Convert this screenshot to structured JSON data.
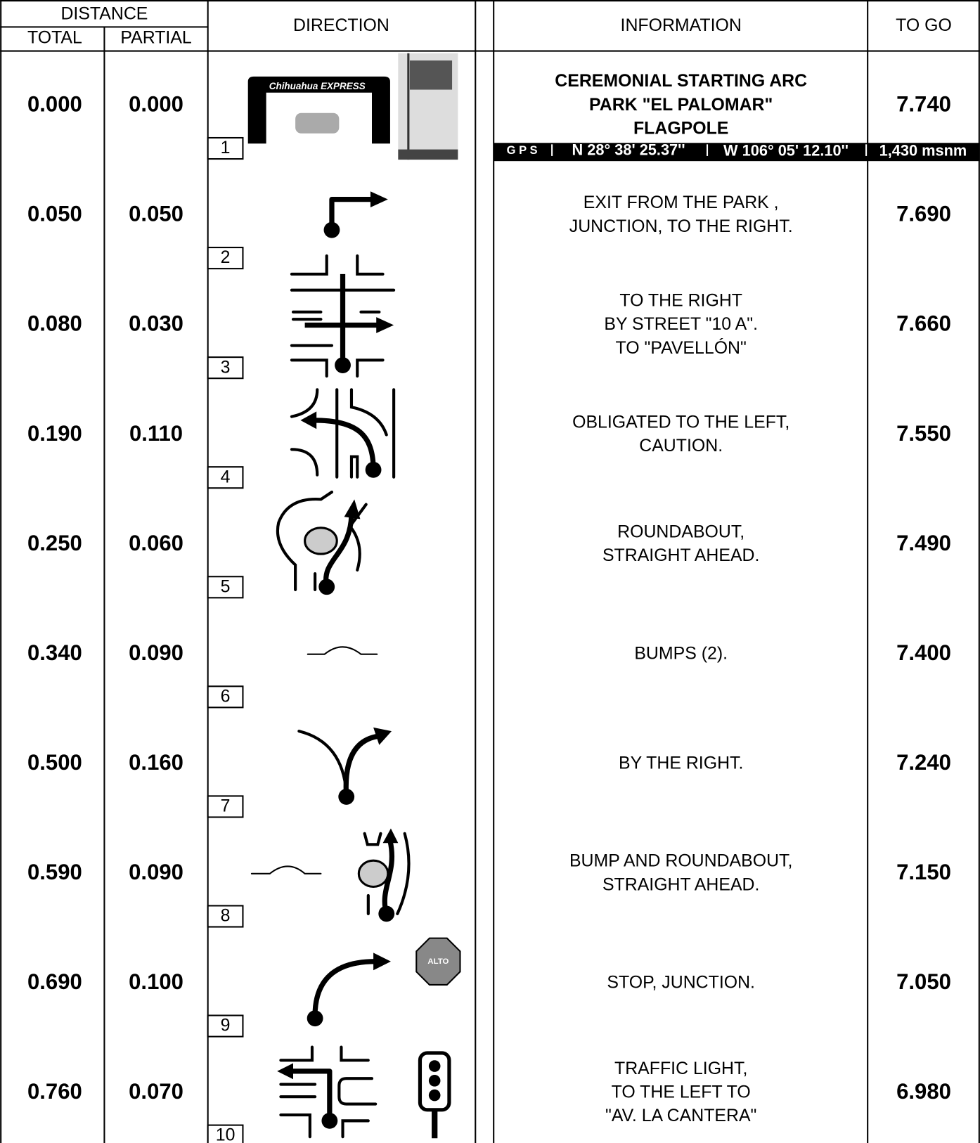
{
  "header": {
    "distance": "DISTANCE",
    "total": "TOTAL",
    "partial": "PARTIAL",
    "direction": "DIRECTION",
    "information": "INFORMATION",
    "to_go": "TO GO"
  },
  "rows": [
    {
      "number": 1,
      "total": "0.000",
      "partial": "0.000",
      "info": [
        "CEREMONIAL STARTING ARC",
        "PARK \"EL PALOMAR\"",
        "FLAGPOLE"
      ],
      "to_go": "7.740"
    },
    {
      "number": 2,
      "total": "0.050",
      "partial": "0.050",
      "info": [
        "EXIT FROM THE PARK ,",
        "JUNCTION, TO THE  RIGHT."
      ],
      "to_go": "7.690"
    },
    {
      "number": 3,
      "total": "0.080",
      "partial": "0.030",
      "info": [
        "TO THE  RIGHT",
        "BY STREET \"10 A\".",
        "TO \"PAVELLÓN\""
      ],
      "to_go": "7.660"
    },
    {
      "number": 4,
      "total": "0.190",
      "partial": "0.110",
      "info": [
        "OBLIGATED TO THE LEFT,",
        "CAUTION."
      ],
      "to_go": "7.550"
    },
    {
      "number": 5,
      "total": "0.250",
      "partial": "0.060",
      "info": [
        "ROUNDABOUT,",
        "STRAIGHT AHEAD."
      ],
      "to_go": "7.490"
    },
    {
      "number": 6,
      "total": "0.340",
      "partial": "0.090",
      "info": [
        "BUMPS (2)."
      ],
      "to_go": "7.400"
    },
    {
      "number": 7,
      "total": "0.500",
      "partial": "0.160",
      "info": [
        "BY THE RIGHT."
      ],
      "to_go": "7.240"
    },
    {
      "number": 8,
      "total": "0.590",
      "partial": "0.090",
      "info": [
        "BUMP AND ROUNDABOUT,",
        "STRAIGHT AHEAD."
      ],
      "to_go": "7.150"
    },
    {
      "number": 9,
      "total": "0.690",
      "partial": "0.100",
      "info": [
        "STOP, JUNCTION."
      ],
      "to_go": "7.050"
    },
    {
      "number": 10,
      "total": "0.760",
      "partial": "0.070",
      "info": [
        "TRAFFIC LIGHT,",
        "TO THE LEFT TO",
        "\"AV. LA CANTERA\""
      ],
      "to_go": "6.980"
    }
  ],
  "gps": {
    "label": "G P S",
    "lat": "N 28° 38' 25.37''",
    "lon": "W 106° 05' 12.10''",
    "alt": "1,430 msnm"
  },
  "icon_texts": {
    "arc": "Chihuahua EXPRESS",
    "stop": "ALTO"
  }
}
